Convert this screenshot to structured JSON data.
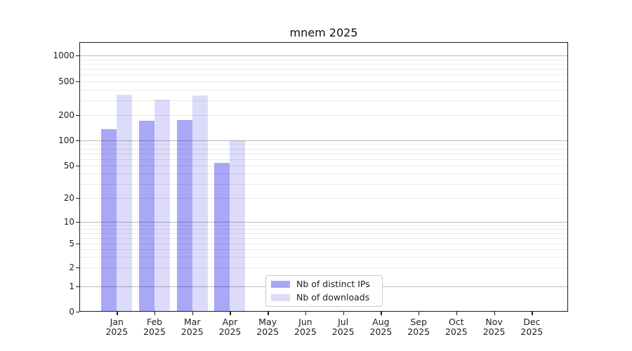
{
  "chart_data": {
    "type": "bar",
    "title": "mnem 2025",
    "categories": [
      "Jan",
      "Feb",
      "Mar",
      "Apr",
      "May",
      "Jun",
      "Jul",
      "Aug",
      "Sep",
      "Oct",
      "Nov",
      "Dec"
    ],
    "x_year": "2025",
    "series": [
      {
        "name": "Nb of distinct IPs",
        "color": "#a8a8f6",
        "values": [
          136,
          170,
          176,
          54,
          null,
          null,
          null,
          null,
          null,
          null,
          null,
          null
        ]
      },
      {
        "name": "Nb of downloads",
        "color": "#dcdcfa",
        "values": [
          350,
          306,
          341,
          100,
          null,
          null,
          null,
          null,
          null,
          null,
          null,
          null
        ]
      }
    ],
    "y_ticks": [
      "0",
      "1",
      "2",
      "5",
      "10",
      "20",
      "50",
      "100",
      "200",
      "500",
      "1000"
    ],
    "ylim": [
      0,
      1000
    ],
    "yscale": "symlog",
    "grid": "both",
    "legend_position": "lower center",
    "axis_color": "#1c1c1c",
    "major_grid_color": "#bcbcbc",
    "minor_grid_color": "#ececec"
  }
}
